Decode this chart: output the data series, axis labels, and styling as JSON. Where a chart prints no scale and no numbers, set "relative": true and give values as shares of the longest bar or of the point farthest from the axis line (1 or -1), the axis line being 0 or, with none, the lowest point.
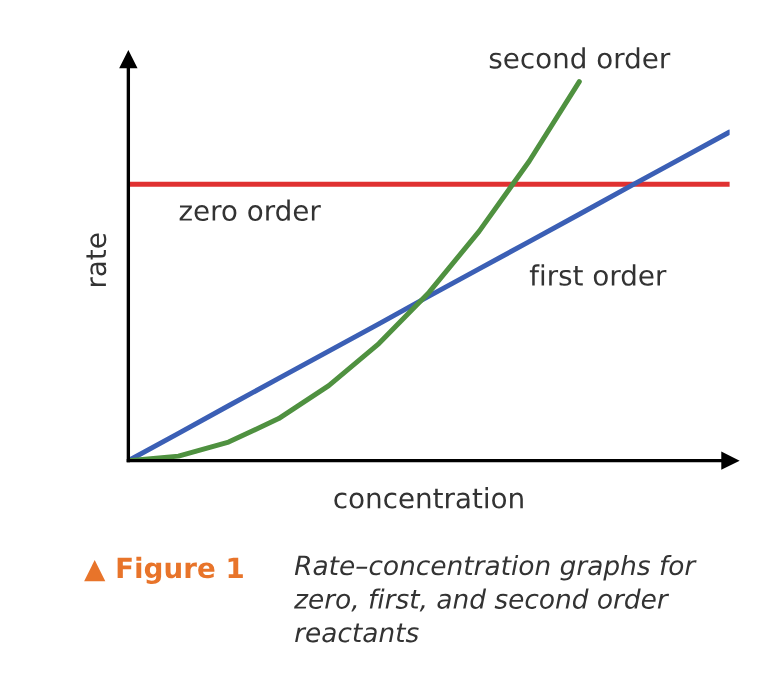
{
  "chart_data": {
    "type": "line",
    "relative": true,
    "xlabel": "concentration",
    "ylabel": "rate",
    "categories": [
      null,
      null,
      null,
      null,
      null,
      null,
      null,
      null,
      null,
      null,
      null,
      null,
      null
    ],
    "series": [
      {
        "name": "zero order",
        "color": "#e03131",
        "values": [
          0.729,
          0.729,
          0.729,
          0.729,
          0.729,
          0.729,
          0.729,
          0.729,
          0.729,
          0.729,
          0.729,
          0.729,
          0.729
        ]
      },
      {
        "name": "first order",
        "color": "#3b5fb5",
        "values": [
          0,
          0.072,
          0.145,
          0.217,
          0.289,
          0.361,
          0.434,
          0.506,
          0.578,
          0.65,
          0.723,
          0.795,
          0.867
        ]
      },
      {
        "name": "second order",
        "color": "#4f9140",
        "values": [
          0,
          0.012,
          0.049,
          0.111,
          0.198,
          0.309,
          0.444,
          0.605,
          0.79,
          1.0,
          null,
          null,
          null
        ]
      }
    ],
    "annotations": [
      "▲ Figure 1",
      "Rate–concentration graphs for zero, first, and second order reactants"
    ]
  }
}
